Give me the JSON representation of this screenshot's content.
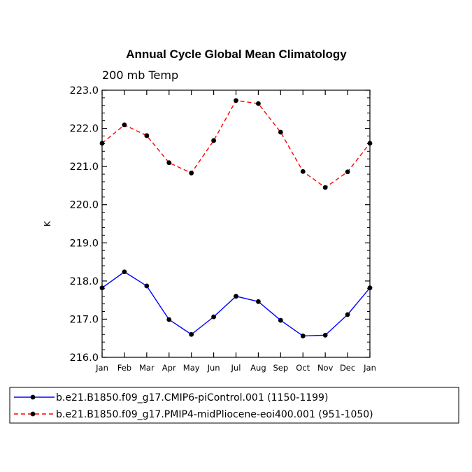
{
  "chart_data": {
    "type": "line",
    "title": "Annual Cycle Global Mean Climatology",
    "subtitle": "200 mb Temp",
    "xlabel": "",
    "ylabel": "K",
    "ylim": [
      216.0,
      223.0
    ],
    "yticks": [
      "216.0",
      "217.0",
      "218.0",
      "219.0",
      "220.0",
      "221.0",
      "222.0",
      "223.0"
    ],
    "categories": [
      "Jan",
      "Feb",
      "Mar",
      "Apr",
      "May",
      "Jun",
      "Jul",
      "Aug",
      "Sep",
      "Oct",
      "Nov",
      "Dec",
      "Jan"
    ],
    "series": [
      {
        "name": "b.e21.B1850.f09_g17.CMIP6-piControl.001 (1150-1199)",
        "color": "#0000ff",
        "dash": "solid",
        "values": [
          217.82,
          218.24,
          217.87,
          216.99,
          216.6,
          217.06,
          217.6,
          217.46,
          216.97,
          216.56,
          216.58,
          217.12,
          217.82
        ]
      },
      {
        "name": "b.e21.B1850.f09_g17.PMIP4-midPliocene-eoi400.001 (951-1050)",
        "color": "#ff0000",
        "dash": "dashed",
        "values": [
          221.61,
          222.09,
          221.81,
          221.1,
          220.83,
          221.68,
          222.73,
          222.65,
          221.9,
          220.87,
          220.45,
          220.86,
          221.61
        ]
      }
    ],
    "grid": false,
    "legend_position": "bottom"
  }
}
